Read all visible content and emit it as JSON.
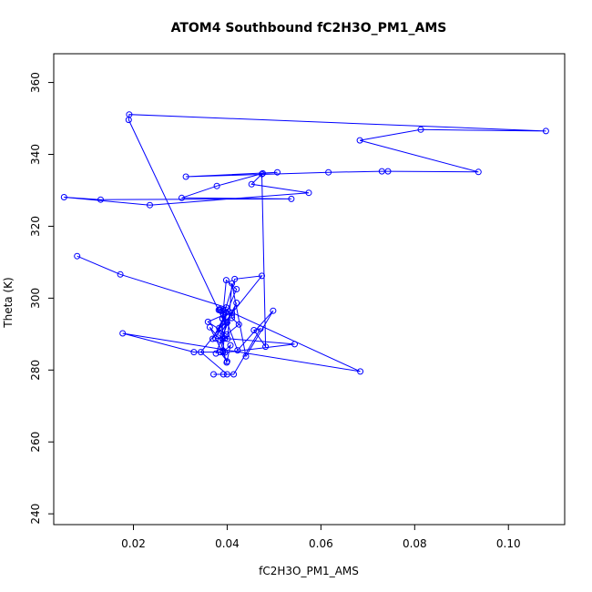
{
  "chart_data": {
    "type": "line",
    "title": "ATOM4 Southbound fC2H3O_PM1_AMS",
    "xlabel": "fC2H3O_PM1_AMS",
    "ylabel": "Theta (K)",
    "xlim": [
      0.003,
      0.112
    ],
    "ylim": [
      237,
      368
    ],
    "xticks": [
      0.02,
      0.04,
      0.06,
      0.08,
      0.1
    ],
    "xtick_labels": [
      "0.02",
      "0.04",
      "0.06",
      "0.08",
      "0.10"
    ],
    "yticks": [
      240,
      260,
      280,
      300,
      320,
      340,
      360
    ],
    "ytick_labels": [
      "240",
      "260",
      "280",
      "300",
      "320",
      "340",
      "360"
    ],
    "grid": false,
    "legend": "none",
    "colors": {
      "series": "#0000ff",
      "axis": "#000000"
    },
    "series": [
      {
        "marker": "open-circle",
        "x": [
          0.008,
          0.0172,
          0.0398,
          0.0384,
          0.0392,
          0.0392,
          0.0359,
          0.0399,
          0.0425,
          0.041,
          0.041,
          0.042,
          0.0387,
          0.0401,
          0.041,
          0.044,
          0.0498,
          0.0422,
          0.04,
          0.0383,
          0.0395,
          0.0544,
          0.0395,
          0.0375,
          0.042,
          0.0398,
          0.039,
          0.0416,
          0.0474,
          0.0344,
          0.04,
          0.0371,
          0.0392,
          0.0414,
          0.0471,
          0.0457,
          0.0482,
          0.0474,
          0.0452,
          0.0574,
          0.0235,
          0.0052,
          0.013,
          0.0537,
          0.0303,
          0.0378,
          0.0476,
          0.0507,
          0.0312,
          0.0616,
          0.073,
          0.0743,
          0.0936,
          0.0683,
          0.0813,
          0.108,
          0.0191,
          0.019,
          0.039,
          0.039,
          0.0399,
          0.0385,
          0.0382,
          0.0403,
          0.0369,
          0.0398,
          0.0391,
          0.0407,
          0.0399,
          0.0391,
          0.0386,
          0.0363,
          0.04,
          0.0385,
          0.0329,
          0.0177,
          0.0684,
          0.041,
          0.0376
        ],
        "y": [
          311.7,
          306.6,
          297.4,
          296.9,
          296.6,
          295.3,
          293.4,
          289.9,
          292.7,
          294.5,
          295.2,
          298.7,
          290.1,
          288.7,
          304.1,
          283.8,
          296.5,
          285.5,
          293.2,
          291.7,
          284.9,
          287.2,
          288.8,
          288.8,
          302.5,
          305.0,
          294.3,
          305.3,
          306.2,
          285.0,
          278.8,
          278.8,
          278.8,
          278.8,
          291.5,
          291.1,
          286.5,
          334.5,
          331.7,
          329.3,
          325.9,
          328.1,
          327.4,
          327.6,
          327.9,
          331.2,
          334.7,
          335.0,
          333.8,
          335.0,
          335.3,
          335.3,
          335.1,
          343.9,
          346.9,
          346.5,
          351.1,
          349.6,
          294.3,
          288.7,
          293.3,
          296.6,
          296.7,
          296.3,
          288.7,
          296.0,
          285.0,
          286.9,
          282.1,
          285.4,
          288.3,
          291.9,
          282.4,
          285.0,
          285.0,
          290.2,
          279.6,
          296.0,
          284.6
        ]
      }
    ]
  }
}
